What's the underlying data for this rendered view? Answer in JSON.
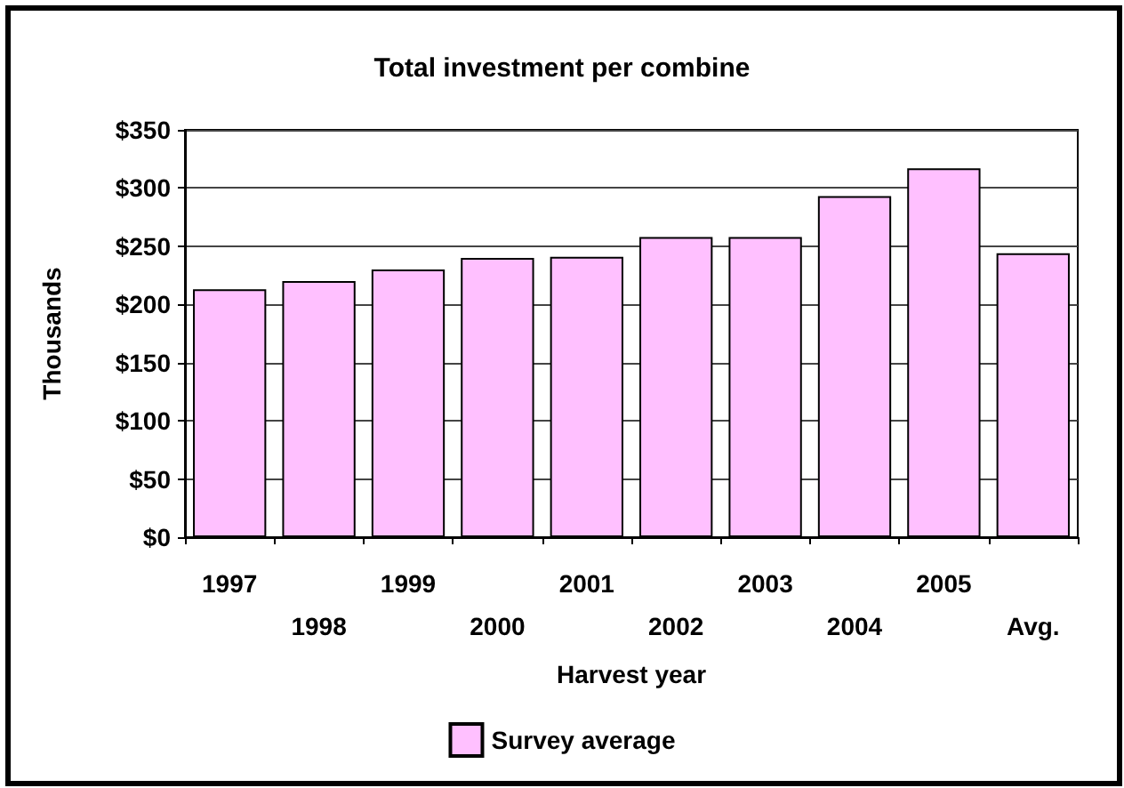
{
  "chart_data": {
    "type": "bar",
    "title": "Total investment per combine",
    "xlabel": "Harvest year",
    "ylabel": "Thousands",
    "categories": [
      "1997",
      "1998",
      "1999",
      "2000",
      "2001",
      "2002",
      "2003",
      "2004",
      "2005",
      "Avg."
    ],
    "series": [
      {
        "name": "Survey average",
        "color": "#ffc0ff",
        "values": [
          213,
          220,
          230,
          240,
          241,
          258,
          258,
          293,
          317,
          244
        ]
      }
    ],
    "ylim": [
      0,
      350
    ],
    "yticks": [
      {
        "value": 0,
        "label": "$0"
      },
      {
        "value": 50,
        "label": "$50"
      },
      {
        "value": 100,
        "label": "$100"
      },
      {
        "value": 150,
        "label": "$150"
      },
      {
        "value": 200,
        "label": "$200"
      },
      {
        "value": 250,
        "label": "$250"
      },
      {
        "value": 300,
        "label": "$300"
      },
      {
        "value": 350,
        "label": "$350"
      }
    ],
    "grid": "y",
    "legend": "bottom"
  }
}
